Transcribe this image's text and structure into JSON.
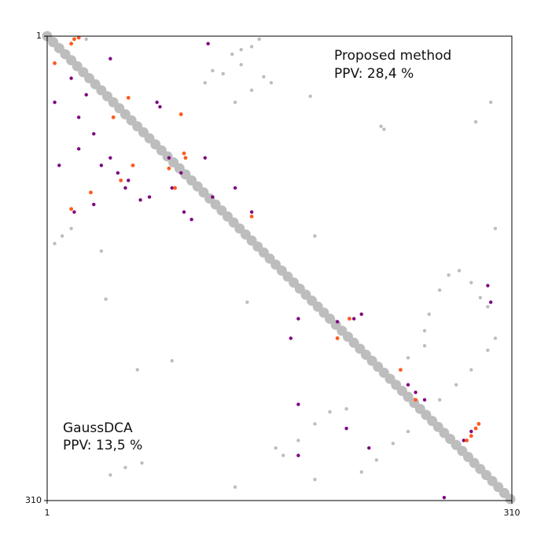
{
  "chart_data": {
    "type": "scatter",
    "annotations": [
      "Proposed method",
      "PPV: 28,4 %",
      "GaussDCA",
      "PPV: 13,5 %"
    ],
    "xlim": [
      1,
      310
    ],
    "ylim": [
      310,
      1
    ],
    "xticks": [
      1,
      310
    ],
    "yticks": [
      1,
      310
    ],
    "series": [
      {
        "color": "#bdbdbd",
        "x": [
          1,
          5,
          9,
          13,
          17,
          21,
          25,
          29,
          33,
          37,
          41,
          45,
          49,
          53,
          57,
          61,
          65,
          69,
          73,
          77,
          81,
          85,
          89,
          93,
          97,
          101,
          105,
          109,
          113,
          117,
          121,
          125,
          129,
          133,
          137,
          141,
          145,
          149,
          153,
          157,
          161,
          165,
          169,
          173,
          177,
          181,
          185,
          189,
          193,
          197,
          201,
          205,
          209,
          213,
          217,
          221,
          225,
          229,
          233,
          237,
          241,
          245,
          249,
          253,
          257,
          261,
          265,
          269,
          273,
          277,
          281,
          285,
          289,
          293,
          297,
          301,
          305,
          309
        ],
        "y": [
          1,
          5,
          9,
          13,
          17,
          21,
          25,
          29,
          33,
          37,
          41,
          45,
          49,
          53,
          57,
          61,
          65,
          69,
          73,
          77,
          81,
          85,
          89,
          93,
          97,
          101,
          105,
          109,
          113,
          117,
          121,
          125,
          129,
          133,
          137,
          141,
          145,
          149,
          153,
          157,
          161,
          165,
          169,
          173,
          177,
          181,
          185,
          189,
          193,
          197,
          201,
          205,
          209,
          213,
          217,
          221,
          225,
          229,
          233,
          237,
          241,
          245,
          249,
          253,
          257,
          261,
          265,
          269,
          273,
          277,
          281,
          285,
          289,
          293,
          297,
          301,
          305,
          309
        ]
      },
      {
        "color": "#bdbdbd",
        "x": [
          137,
          124,
          111,
          106,
          142,
          126,
          137,
          150,
          176,
          223,
          225,
          286,
          296,
          299,
          179,
          268,
          275,
          283,
          289,
          294,
          255,
          252,
          262,
          6,
          11,
          17,
          37,
          40,
          61,
          84,
          134,
          158,
          168,
          179,
          189,
          200,
          210,
          220,
          231,
          241,
          252,
          262,
          273,
          283,
          294,
          299,
          126,
          43,
          53,
          64,
          241,
          252,
          153,
          179,
          6,
          9,
          27,
          130,
          118,
          130,
          145
        ],
        "y": [
          8,
          13,
          24,
          32,
          3,
          45,
          37,
          32,
          41,
          61,
          63,
          58,
          45,
          129,
          134,
          160,
          157,
          165,
          175,
          181,
          186,
          197,
          170,
          139,
          134,
          129,
          144,
          176,
          223,
          217,
          178,
          280,
          270,
          259,
          251,
          249,
          291,
          283,
          272,
          264,
          254,
          243,
          233,
          223,
          210,
          202,
          301,
          293,
          288,
          285,
          215,
          207,
          275,
          296,
          19,
          8,
          3,
          20,
          26,
          10,
          28
        ]
      },
      {
        "color": "#800080",
        "x": [
          6,
          17,
          22,
          27,
          32,
          37,
          43,
          48,
          53,
          58,
          69,
          74,
          82,
          84,
          92,
          97,
          106,
          111,
          126,
          137,
          9,
          19,
          32,
          55,
          63,
          108,
          76,
          90,
          22,
          43,
          205,
          210,
          168,
          163,
          194,
          241,
          246,
          252,
          168,
          200,
          278,
          283,
          294,
          296,
          265,
          168,
          215
        ],
        "y": [
          45,
          29,
          55,
          40,
          66,
          87,
          16,
          92,
          102,
          87,
          108,
          45,
          82,
          102,
          118,
          123,
          82,
          108,
          102,
          118,
          87,
          118,
          113,
          97,
          110,
          6,
          48,
          92,
          76,
          82,
          189,
          186,
          189,
          202,
          191,
          233,
          238,
          243,
          246,
          262,
          270,
          264,
          167,
          178,
          308,
          280,
          275
        ]
      },
      {
        "color": "#ff5a1f",
        "x": [
          17,
          19,
          22,
          6,
          45,
          55,
          90,
          92,
          93,
          82,
          50,
          30,
          17,
          58,
          86,
          137,
          194,
          202,
          236,
          283,
          286,
          288,
          280,
          246
        ],
        "y": [
          6,
          3,
          2,
          19,
          55,
          42,
          53,
          79,
          82,
          89,
          97,
          105,
          116,
          87,
          102,
          121,
          202,
          189,
          223,
          267,
          262,
          259,
          270,
          243
        ]
      }
    ]
  }
}
